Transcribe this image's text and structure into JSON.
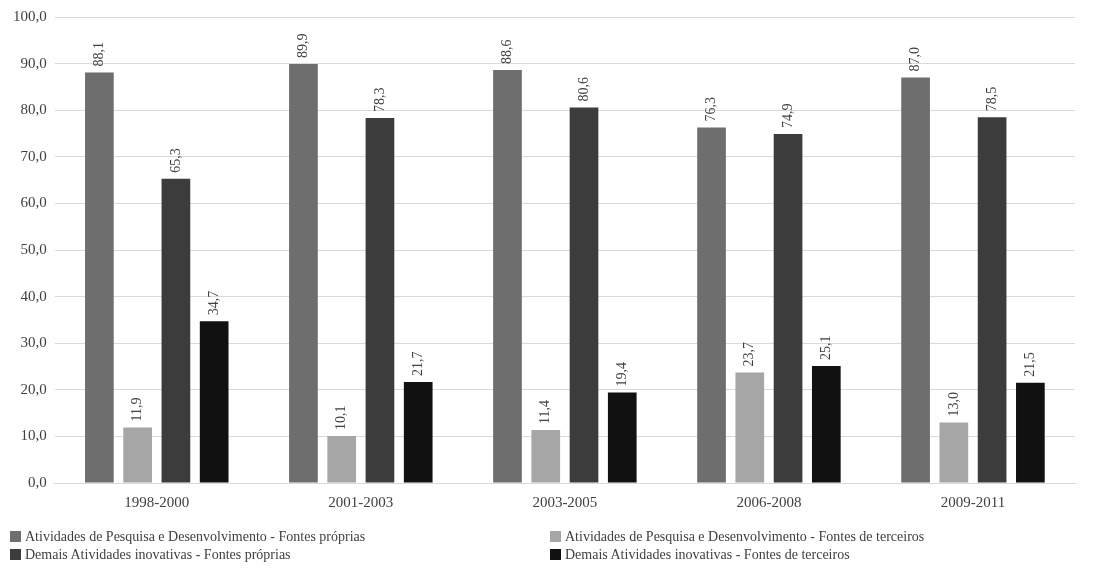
{
  "chart_data": {
    "type": "bar",
    "categories": [
      "1998-2000",
      "2001-2003",
      "2003-2005",
      "2006-2008",
      "2009-2011"
    ],
    "series": [
      {
        "name": "Atividades de Pesquisa e Desenvolvimento  - Fontes próprias",
        "color": "#6e6e6e",
        "values": [
          88.1,
          89.9,
          88.6,
          76.3,
          87.0
        ],
        "value_labels": [
          "88,1",
          "89,9",
          "88,6",
          "76,3",
          "87,0"
        ]
      },
      {
        "name": "Atividades de Pesquisa e Desenvolvimento  - Fontes de terceiros",
        "color": "#a6a6a6",
        "values": [
          11.9,
          10.1,
          11.4,
          23.7,
          13.0
        ],
        "value_labels": [
          "11,9",
          "10,1",
          "11,4",
          "23,7",
          "13,0"
        ]
      },
      {
        "name": "Demais Atividades inovativas  - Fontes próprias",
        "color": "#3c3c3c",
        "values": [
          65.3,
          78.3,
          80.6,
          74.9,
          78.5
        ],
        "value_labels": [
          "65,3",
          "78,3",
          "80,6",
          "74,9",
          "78,5"
        ]
      },
      {
        "name": "Demais Atividades inovativas  - Fontes de terceiros",
        "color": "#111111",
        "values": [
          34.7,
          21.7,
          19.4,
          25.1,
          21.5
        ],
        "value_labels": [
          "34,7",
          "21,7",
          "19,4",
          "25,1",
          "21,5"
        ]
      }
    ],
    "ylim": [
      0,
      100
    ],
    "yticks": [
      {
        "value": 0,
        "label": "0,0"
      },
      {
        "value": 10,
        "label": "10,0"
      },
      {
        "value": 20,
        "label": "20,0"
      },
      {
        "value": 30,
        "label": "30,0"
      },
      {
        "value": 40,
        "label": "40,0"
      },
      {
        "value": 50,
        "label": "50,0"
      },
      {
        "value": 60,
        "label": "60,0"
      },
      {
        "value": 70,
        "label": "70,0"
      },
      {
        "value": 80,
        "label": "80,0"
      },
      {
        "value": 90,
        "label": "90,0"
      },
      {
        "value": 100,
        "label": "100,0"
      }
    ],
    "grid": "y",
    "legend": "bottom"
  }
}
